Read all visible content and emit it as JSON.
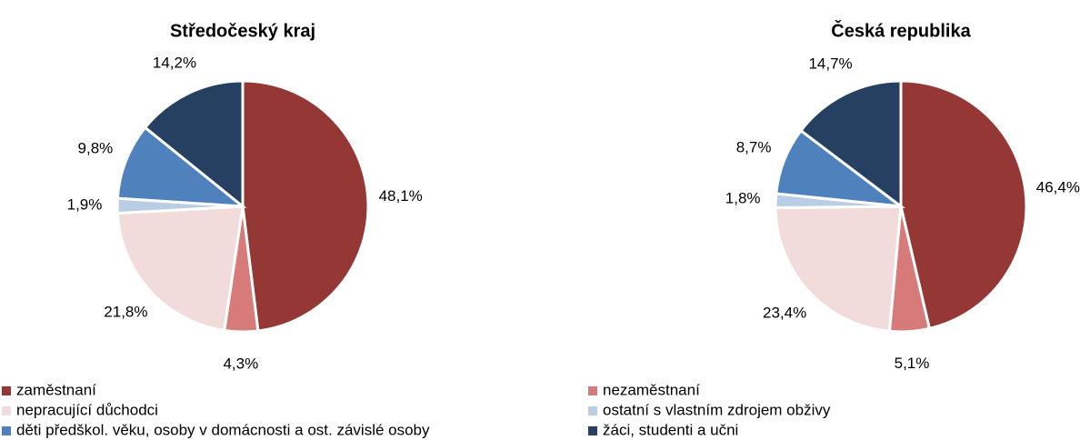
{
  "chart_data": [
    {
      "type": "pie",
      "title": "Středočeský kraj",
      "categories": [
        "zaměstnaní",
        "nezaměstnaní",
        "nepracující důchodci",
        "ostatní s vlastním zdrojem obživy",
        "děti předškol. věku, osoby v domácnosti a ost. závislé osoby",
        "žáci, studenti a učni"
      ],
      "values": [
        48.1,
        4.3,
        21.8,
        1.9,
        9.8,
        14.2
      ],
      "value_labels": [
        "48,1%",
        "4,3%",
        "21,8%",
        "1,9%",
        "9,8%",
        "14,2%"
      ],
      "colors": [
        "#953735",
        "#d77b7a",
        "#f2dcdb",
        "#b9cde5",
        "#4f81bd",
        "#254061"
      ],
      "legend": "bottom"
    },
    {
      "type": "pie",
      "title": "Česká republika",
      "categories": [
        "zaměstnaní",
        "nezaměstnaní",
        "nepracující důchodci",
        "ostatní s vlastním zdrojem obživy",
        "děti předškol. věku, osoby v domácnosti a ost. závislé osoby",
        "žáci, studenti a učni"
      ],
      "values": [
        46.4,
        5.1,
        23.4,
        1.8,
        8.7,
        14.7
      ],
      "value_labels": [
        "46,4%",
        "5,1%",
        "23,4%",
        "1,8%",
        "8,7%",
        "14,7%"
      ],
      "colors": [
        "#953735",
        "#d77b7a",
        "#f2dcdb",
        "#b9cde5",
        "#4f81bd",
        "#254061"
      ]
    }
  ]
}
